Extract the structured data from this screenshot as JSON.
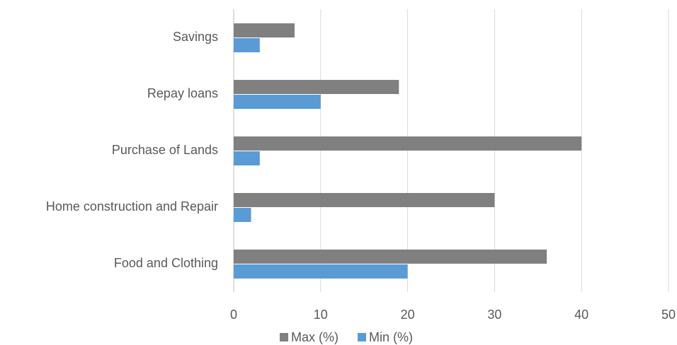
{
  "chart_data": {
    "type": "hbar",
    "categories": [
      "Savings",
      "Repay loans",
      "Purchase of Lands",
      "Home construction and Repair",
      "Food and Clothing"
    ],
    "series": [
      {
        "name": "Max (%)",
        "color": "#808080",
        "values": [
          7,
          19,
          40,
          30,
          36
        ]
      },
      {
        "name": "Min (%)",
        "color": "#5b9bd5",
        "values": [
          3,
          10,
          3,
          2,
          20
        ]
      }
    ],
    "xlim": [
      0,
      50
    ],
    "xticks": [
      0,
      10,
      20,
      30,
      40,
      50
    ],
    "grid": true,
    "legend": "bottom"
  }
}
